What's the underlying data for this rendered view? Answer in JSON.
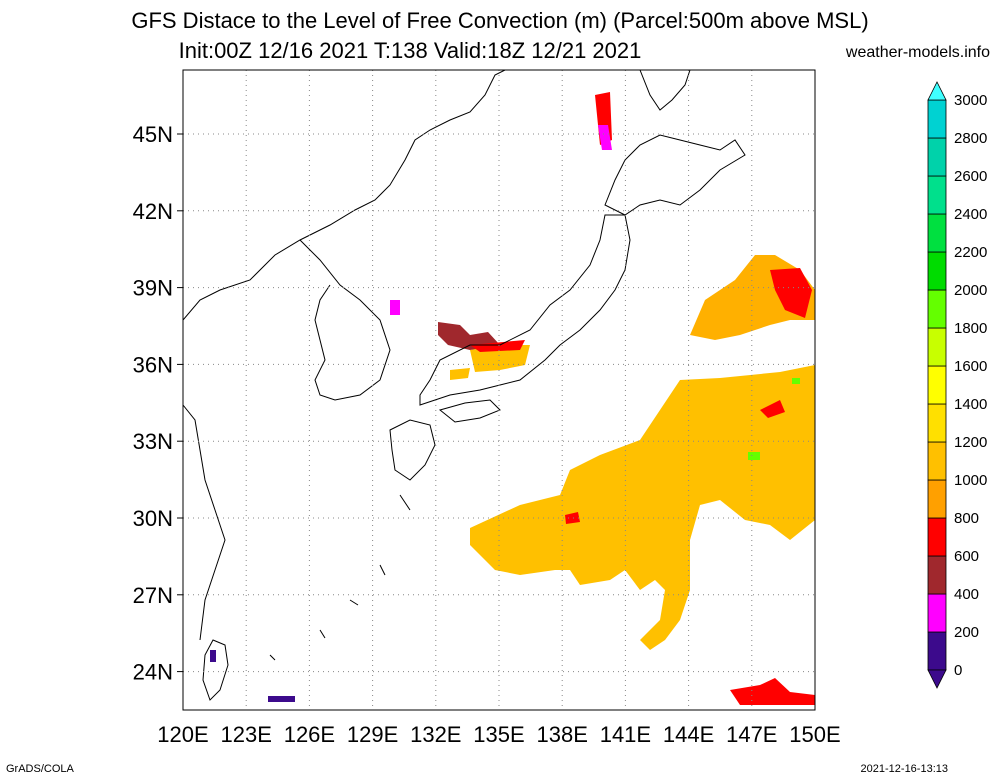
{
  "title_line1": "GFS Distace to the Level of Free Convection (m) (Parcel:500m above MSL)",
  "title_line2": "Init:00Z 12/16 2021 T:138 Valid:18Z 12/21 2021",
  "site": "weather-models.info",
  "footer_left": "GrADS/COLA",
  "footer_right": "2021-12-16-13:13",
  "map": {
    "lon_range": [
      120,
      150
    ],
    "lat_range": [
      22.5,
      47.5
    ],
    "lon_ticks": [
      "120E",
      "123E",
      "126E",
      "129E",
      "132E",
      "135E",
      "138E",
      "141E",
      "144E",
      "147E",
      "150E"
    ],
    "lat_ticks": [
      "24N",
      "27N",
      "30N",
      "33N",
      "36N",
      "39N",
      "42N",
      "45N"
    ],
    "grid": "dotted"
  },
  "colorbar": {
    "labels": [
      "0",
      "200",
      "400",
      "600",
      "800",
      "1000",
      "1200",
      "1400",
      "1600",
      "1800",
      "2000",
      "2200",
      "2400",
      "2600",
      "2800",
      "3000"
    ],
    "colors": [
      "#3c0a8c",
      "#ff00ff",
      "#a0282d",
      "#ff0000",
      "#ffa000",
      "#ffc000",
      "#ffe000",
      "#ffff00",
      "#c8ff00",
      "#64ff00",
      "#00dc00",
      "#00e040",
      "#00e08c",
      "#00d2aa",
      "#00d2d2",
      "#40ffff"
    ]
  }
}
